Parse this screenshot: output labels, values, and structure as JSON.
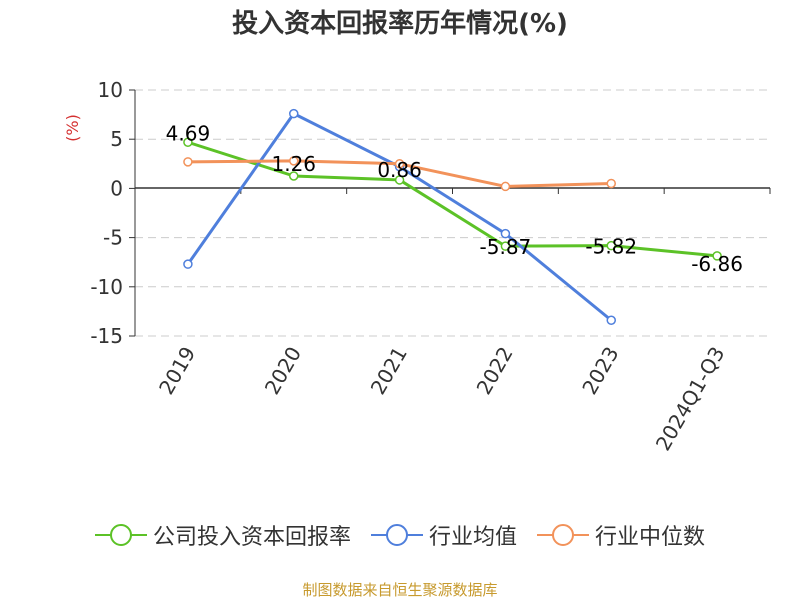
{
  "chart_data": {
    "type": "line",
    "title": "投入资本回报率历年情况(%)",
    "ylabel": "(%)",
    "xlabel": "",
    "categories": [
      "2019",
      "2020",
      "2021",
      "2022",
      "2023",
      "2024Q1-Q3"
    ],
    "ylim": [
      -15,
      10
    ],
    "yticks": [
      10,
      5,
      0,
      -5,
      -10,
      -15
    ],
    "grid": true,
    "legend_position": "bottom",
    "series": [
      {
        "name": "公司投入资本回报率",
        "color": "#5cc227",
        "values": [
          4.69,
          1.26,
          0.86,
          -5.87,
          -5.82,
          -6.86
        ],
        "labels": [
          "4.69",
          "1.26",
          "0.86",
          "-5.87",
          "-5.82",
          "-6.86"
        ]
      },
      {
        "name": "行业均值",
        "color": "#4f7fdc",
        "values": [
          -7.7,
          7.6,
          2.2,
          -4.6,
          -13.4,
          null
        ]
      },
      {
        "name": "行业中位数",
        "color": "#f2925a",
        "values": [
          2.7,
          2.8,
          2.5,
          0.2,
          0.5,
          null
        ]
      }
    ],
    "source": "制图数据来自恒生聚源数据库"
  }
}
